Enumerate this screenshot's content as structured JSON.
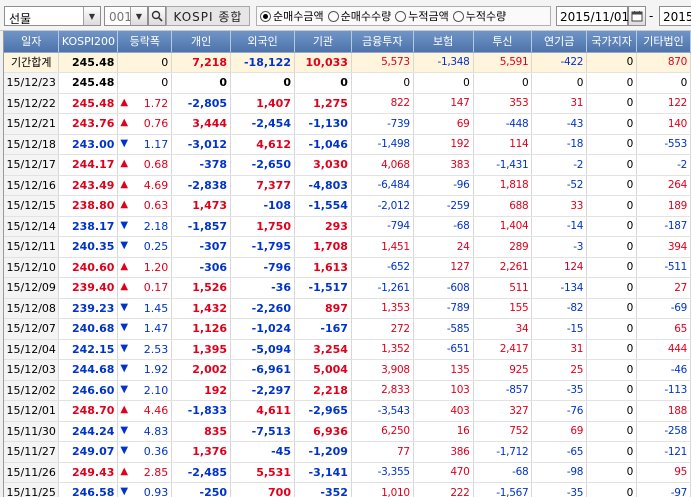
{
  "toolbar": {
    "market": "선물",
    "code": "001",
    "code_name": "KOSPI 종합",
    "radios": [
      {
        "label": "순매수금액",
        "selected": true
      },
      {
        "label": "순매수수량",
        "selected": false
      },
      {
        "label": "누적금액",
        "selected": false
      },
      {
        "label": "누적수량",
        "selected": false
      }
    ],
    "start_date": "2015/11/01",
    "separator": "-",
    "end_date": "2015"
  },
  "table": {
    "headers": [
      "일자",
      "KOSPI200",
      "등락폭",
      "개인",
      "외국인",
      "기관",
      "금융투자",
      "보험",
      "투신",
      "연기금",
      "국가지자",
      "기타법인"
    ],
    "rows": [
      {
        "date": "기간합계",
        "idx": "245.48",
        "dir": "",
        "chg": "0",
        "v": [
          "7,218",
          "-18,122",
          "10,033",
          "5,573",
          "-1,348",
          "5,591",
          "-422",
          "0",
          "870"
        ],
        "sum": true
      },
      {
        "date": "15/12/23",
        "idx": "245.48",
        "dir": "",
        "chg": "0",
        "v": [
          "0",
          "0",
          "0",
          "0",
          "0",
          "0",
          "0",
          "0",
          "0"
        ]
      },
      {
        "date": "15/12/22",
        "idx": "245.48",
        "dir": "up",
        "chg": "1.72",
        "v": [
          "-2,805",
          "1,407",
          "1,275",
          "822",
          "147",
          "353",
          "31",
          "0",
          "122"
        ]
      },
      {
        "date": "15/12/21",
        "idx": "243.76",
        "dir": "up",
        "chg": "0.76",
        "v": [
          "3,444",
          "-2,454",
          "-1,130",
          "-739",
          "69",
          "-448",
          "-43",
          "0",
          "140"
        ]
      },
      {
        "date": "15/12/18",
        "idx": "243.00",
        "dir": "dn",
        "chg": "1.17",
        "v": [
          "-3,012",
          "4,612",
          "-1,046",
          "-1,498",
          "192",
          "114",
          "-18",
          "0",
          "-553"
        ]
      },
      {
        "date": "15/12/17",
        "idx": "244.17",
        "dir": "up",
        "chg": "0.68",
        "v": [
          "-378",
          "-2,650",
          "3,030",
          "4,068",
          "383",
          "-1,431",
          "-2",
          "0",
          "-2"
        ]
      },
      {
        "date": "15/12/16",
        "idx": "243.49",
        "dir": "up",
        "chg": "4.69",
        "v": [
          "-2,838",
          "7,377",
          "-4,803",
          "-6,484",
          "-96",
          "1,818",
          "-52",
          "0",
          "264"
        ]
      },
      {
        "date": "15/12/15",
        "idx": "238.80",
        "dir": "up",
        "chg": "0.63",
        "v": [
          "1,473",
          "-108",
          "-1,554",
          "-2,012",
          "-259",
          "688",
          "33",
          "0",
          "189"
        ]
      },
      {
        "date": "15/12/14",
        "idx": "238.17",
        "dir": "dn",
        "chg": "2.18",
        "v": [
          "-1,857",
          "1,750",
          "293",
          "-794",
          "-68",
          "1,404",
          "-14",
          "0",
          "-187"
        ]
      },
      {
        "date": "15/12/11",
        "idx": "240.35",
        "dir": "dn",
        "chg": "0.25",
        "v": [
          "-307",
          "-1,795",
          "1,708",
          "1,451",
          "24",
          "289",
          "-3",
          "0",
          "394"
        ]
      },
      {
        "date": "15/12/10",
        "idx": "240.60",
        "dir": "up",
        "chg": "1.20",
        "v": [
          "-306",
          "-796",
          "1,613",
          "-652",
          "127",
          "2,261",
          "124",
          "0",
          "-511"
        ]
      },
      {
        "date": "15/12/09",
        "idx": "239.40",
        "dir": "up",
        "chg": "0.17",
        "v": [
          "1,526",
          "-36",
          "-1,517",
          "-1,261",
          "-608",
          "511",
          "-134",
          "0",
          "27"
        ]
      },
      {
        "date": "15/12/08",
        "idx": "239.23",
        "dir": "dn",
        "chg": "1.45",
        "v": [
          "1,432",
          "-2,260",
          "897",
          "1,353",
          "-789",
          "155",
          "-82",
          "0",
          "-69"
        ]
      },
      {
        "date": "15/12/07",
        "idx": "240.68",
        "dir": "dn",
        "chg": "1.47",
        "v": [
          "1,126",
          "-1,024",
          "-167",
          "272",
          "-585",
          "34",
          "-15",
          "0",
          "65"
        ]
      },
      {
        "date": "15/12/04",
        "idx": "242.15",
        "dir": "dn",
        "chg": "2.53",
        "v": [
          "1,395",
          "-5,094",
          "3,254",
          "1,352",
          "-651",
          "2,417",
          "31",
          "0",
          "444"
        ]
      },
      {
        "date": "15/12/03",
        "idx": "244.68",
        "dir": "dn",
        "chg": "1.92",
        "v": [
          "2,002",
          "-6,961",
          "5,004",
          "3,908",
          "135",
          "925",
          "25",
          "0",
          "-46"
        ]
      },
      {
        "date": "15/12/02",
        "idx": "246.60",
        "dir": "dn",
        "chg": "2.10",
        "v": [
          "192",
          "-2,297",
          "2,218",
          "2,833",
          "103",
          "-857",
          "-35",
          "0",
          "-113"
        ]
      },
      {
        "date": "15/12/01",
        "idx": "248.70",
        "dir": "up",
        "chg": "4.46",
        "v": [
          "-1,833",
          "4,611",
          "-2,965",
          "-3,543",
          "403",
          "327",
          "-76",
          "0",
          "188"
        ]
      },
      {
        "date": "15/11/30",
        "idx": "244.24",
        "dir": "dn",
        "chg": "4.83",
        "v": [
          "835",
          "-7,513",
          "6,936",
          "6,250",
          "16",
          "752",
          "69",
          "0",
          "-258"
        ]
      },
      {
        "date": "15/11/27",
        "idx": "249.07",
        "dir": "dn",
        "chg": "0.36",
        "v": [
          "1,376",
          "-45",
          "-1,209",
          "77",
          "386",
          "-1,712",
          "-65",
          "0",
          "-121"
        ]
      },
      {
        "date": "15/11/26",
        "idx": "249.43",
        "dir": "up",
        "chg": "2.85",
        "v": [
          "-2,485",
          "5,531",
          "-3,141",
          "-3,355",
          "470",
          "-68",
          "-98",
          "0",
          "95"
        ]
      },
      {
        "date": "15/11/25",
        "idx": "246.58",
        "dir": "dn",
        "chg": "0.93",
        "v": [
          "-250",
          "700",
          "-352",
          "1,010",
          "222",
          "-1,567",
          "-35",
          "0",
          "-97"
        ]
      }
    ]
  },
  "colors": {
    "up": "#e0001b",
    "down": "#0033cc",
    "header": "#5b7fb5"
  },
  "icons": {
    "up": "triangle-up-icon",
    "down": "triangle-down-icon",
    "dropdown": "chevron-down-icon",
    "search": "search-icon",
    "calendar": "calendar-icon"
  }
}
